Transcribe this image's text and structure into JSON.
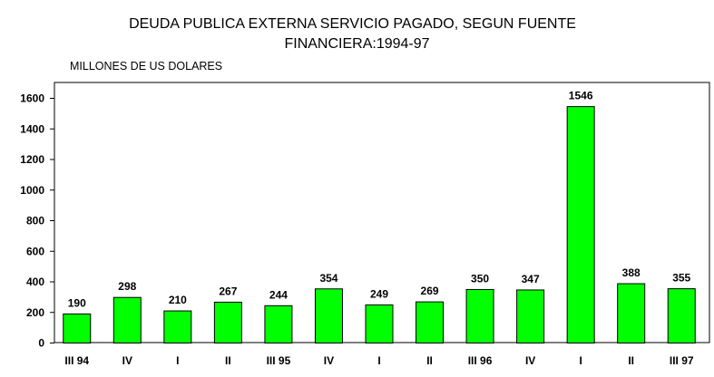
{
  "chart_data": {
    "type": "bar",
    "title_line1": "DEUDA PUBLICA EXTERNA SERVICIO PAGADO, SEGUN FUENTE",
    "title_line2": "FINANCIERA:1994-97",
    "ylabel": "MILLONES DE US DOLARES",
    "xlabel": "",
    "categories": [
      "III 94",
      "IV",
      "I",
      "II",
      "III 95",
      "IV",
      "I",
      "II",
      "III 96",
      "IV",
      "I",
      "II",
      "III 97"
    ],
    "values": [
      190,
      298,
      210,
      267,
      244,
      354,
      249,
      269,
      350,
      347,
      1546,
      388,
      355
    ],
    "ylim": [
      0,
      1700
    ],
    "yticks": [
      0,
      200,
      400,
      600,
      800,
      1000,
      1200,
      1400,
      1600
    ],
    "grid": false,
    "bar_color": "#00ff00",
    "legend": "none"
  }
}
